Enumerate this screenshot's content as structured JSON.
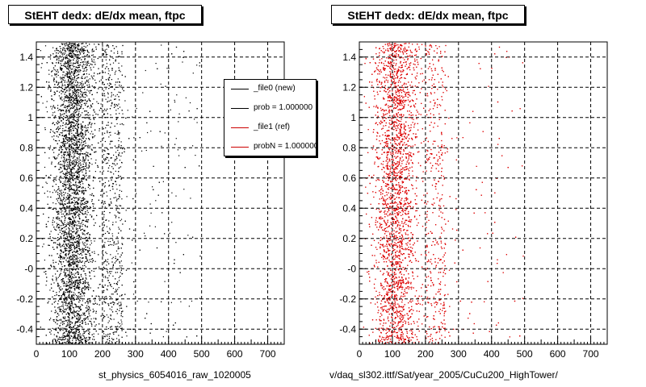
{
  "chart_data": [
    {
      "type": "scatter",
      "title": "StEHT dedx: dE/dx mean, ftpc",
      "xlabel": "st_physics_6054016_raw_1020005",
      "ylabel": "",
      "xlim": [
        0,
        750
      ],
      "ylim": [
        -0.5,
        1.5
      ],
      "x_ticks": [
        "0",
        "100",
        "200",
        "300",
        "400",
        "500",
        "600",
        "700"
      ],
      "y_ticks": [
        "-0.4",
        "-0.2",
        "-0",
        "0.2",
        "0.4",
        "0.6",
        "0.8",
        "1",
        "1.2",
        "1.4"
      ],
      "grid": true,
      "series": [
        {
          "name": "_file0 (new)",
          "color": "#000000",
          "x_center": 110,
          "x_spread": 45,
          "density_profile": "concentrated 50-200, sparse to 400"
        }
      ],
      "legend": {
        "position": "top-right",
        "entries": [
          {
            "label": "_file0 (new)",
            "color": "#000000"
          },
          {
            "label": "prob = 1.000000",
            "color": "#000000"
          },
          {
            "label": "_file1 (ref)",
            "color": "#cc0000"
          },
          {
            "label": "probN = 1.000000",
            "color": "#cc0000"
          }
        ]
      }
    },
    {
      "type": "scatter",
      "title": "StEHT dedx: dE/dx mean, ftpc",
      "xlabel": "v/daq_sl302.ittf/Sat/year_2005/CuCu200_HighTower/",
      "ylabel": "",
      "xlim": [
        0,
        750
      ],
      "ylim": [
        -0.5,
        1.5
      ],
      "x_ticks": [
        "0",
        "100",
        "200",
        "300",
        "400",
        "500",
        "600",
        "700"
      ],
      "y_ticks": [
        "-0.4",
        "-0.2",
        "-0",
        "0.2",
        "0.4",
        "0.6",
        "0.8",
        "1",
        "1.2",
        "1.4"
      ],
      "grid": true,
      "series": [
        {
          "name": "_file1 (ref)",
          "color": "#dd0000",
          "x_center": 110,
          "x_spread": 45,
          "density_profile": "concentrated 50-200, sparse to 400"
        }
      ]
    }
  ],
  "colors": {
    "new": "#000000",
    "ref": "#dd0000",
    "grid": "#000000"
  }
}
